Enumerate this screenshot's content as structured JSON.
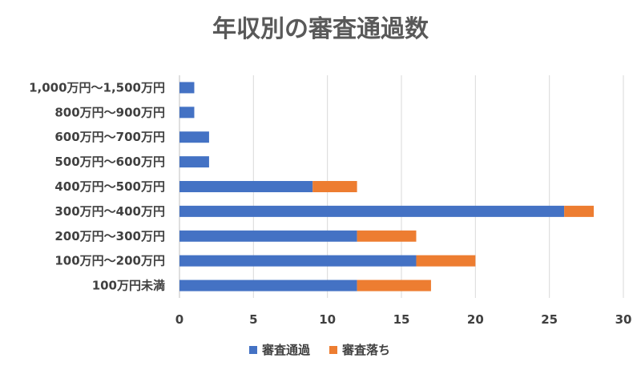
{
  "chart_data": {
    "type": "bar",
    "orientation": "horizontal",
    "stacked": true,
    "title": "年収別の審査通過数",
    "categories": [
      "1,000万円～1,500万円",
      "800万円～900万円",
      "600万円～700万円",
      "500万円～600万円",
      "400万円～500万円",
      "300万円～400万円",
      "200万円～300万円",
      "100万円～200万円",
      "100万円未満"
    ],
    "series": [
      {
        "name": "審査通過",
        "color": "#4472c4",
        "values": [
          1,
          1,
          2,
          2,
          9,
          26,
          12,
          16,
          12
        ]
      },
      {
        "name": "審査落ち",
        "color": "#ed7d31",
        "values": [
          0,
          0,
          0,
          0,
          3,
          2,
          4,
          4,
          5
        ]
      }
    ],
    "xlim": [
      0,
      30
    ],
    "xticks": [
      "0",
      "5",
      "10",
      "15",
      "20",
      "25",
      "30"
    ],
    "xlabel": "",
    "ylabel": "",
    "grid": true,
    "legend_position": "bottom"
  }
}
